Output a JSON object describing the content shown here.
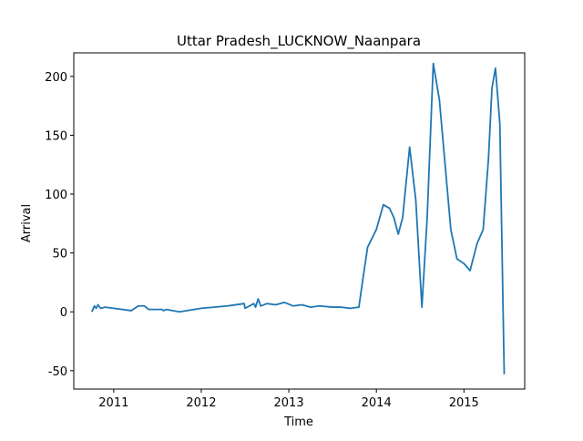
{
  "chart_data": {
    "type": "line",
    "title": "Uttar Pradesh_LUCKNOW_Naanpara",
    "xlabel": "Time",
    "ylabel": "Arrival",
    "series": [
      {
        "name": "Arrival",
        "color": "#1f77b4",
        "x": [
          2010.75,
          2010.78,
          2010.8,
          2010.82,
          2010.85,
          2010.9,
          2011.0,
          2011.1,
          2011.2,
          2011.28,
          2011.35,
          2011.4,
          2011.55,
          2011.57,
          2011.6,
          2011.75,
          2012.0,
          2012.3,
          2012.49,
          2012.5,
          2012.55,
          2012.6,
          2012.62,
          2012.65,
          2012.68,
          2012.75,
          2012.85,
          2012.95,
          2013.05,
          2013.15,
          2013.25,
          2013.35,
          2013.5,
          2013.6,
          2013.7,
          2013.8,
          2013.85,
          2013.9,
          2014.0,
          2014.08,
          2014.15,
          2014.2,
          2014.25,
          2014.3,
          2014.38,
          2014.45,
          2014.52,
          2014.58,
          2014.65,
          2014.72,
          2014.85,
          2014.92,
          2015.0,
          2015.07,
          2015.15,
          2015.22,
          2015.28,
          2015.32,
          2015.36,
          2015.41,
          2015.46
        ],
        "values": [
          0,
          5,
          3,
          6,
          3,
          4,
          3,
          2,
          1,
          5,
          5,
          2,
          2,
          1,
          2,
          0,
          3,
          5,
          7,
          3,
          5,
          7,
          4,
          11,
          5,
          7,
          6,
          8,
          5,
          6,
          4,
          5,
          4,
          4,
          3,
          4,
          30,
          55,
          70,
          91,
          88,
          80,
          66,
          80,
          140,
          95,
          4,
          80,
          211,
          180,
          70,
          45,
          41,
          35,
          58,
          70,
          130,
          190,
          207,
          160,
          -53
        ]
      }
    ],
    "xlim": [
      2010.544,
      2015.694
    ],
    "xticks": [
      2011,
      2012,
      2013,
      2014,
      2015
    ],
    "ylim": [
      -65.6,
      220
    ],
    "yticks": [
      -50,
      0,
      50,
      100,
      150,
      200
    ],
    "grid": false
  }
}
